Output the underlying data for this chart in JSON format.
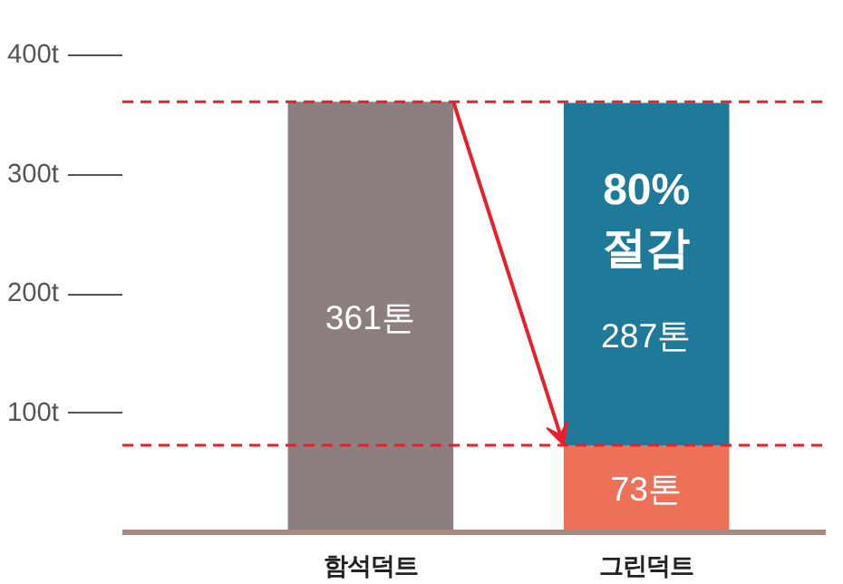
{
  "chart_data": {
    "type": "bar",
    "stacked": true,
    "categories": [
      "함석덕트",
      "그린덕트"
    ],
    "series": [
      {
        "colors": [
          "#8d7e7f",
          "#ec7158"
        ],
        "values": [
          361,
          73
        ],
        "value_labels": [
          "361톤",
          "73톤"
        ]
      },
      {
        "color": "#1f7a9a",
        "values": [
          null,
          287
        ],
        "value_labels": [
          null,
          "287톤"
        ]
      }
    ],
    "ylim": [
      0,
      400
    ],
    "yticks": [
      {
        "value": 100,
        "label": "100t"
      },
      {
        "value": 200,
        "label": "200t"
      },
      {
        "value": 300,
        "label": "300t"
      },
      {
        "value": 400,
        "label": "400t"
      }
    ],
    "grid": false,
    "ref_lines": [
      {
        "axis": "y",
        "value": 361,
        "color": "#e8202a",
        "line_style": "dashed"
      },
      {
        "axis": "y",
        "value": 73,
        "color": "#e8202a",
        "line_style": "dashed"
      }
    ],
    "annotations": [
      "80%\n절감"
    ]
  }
}
